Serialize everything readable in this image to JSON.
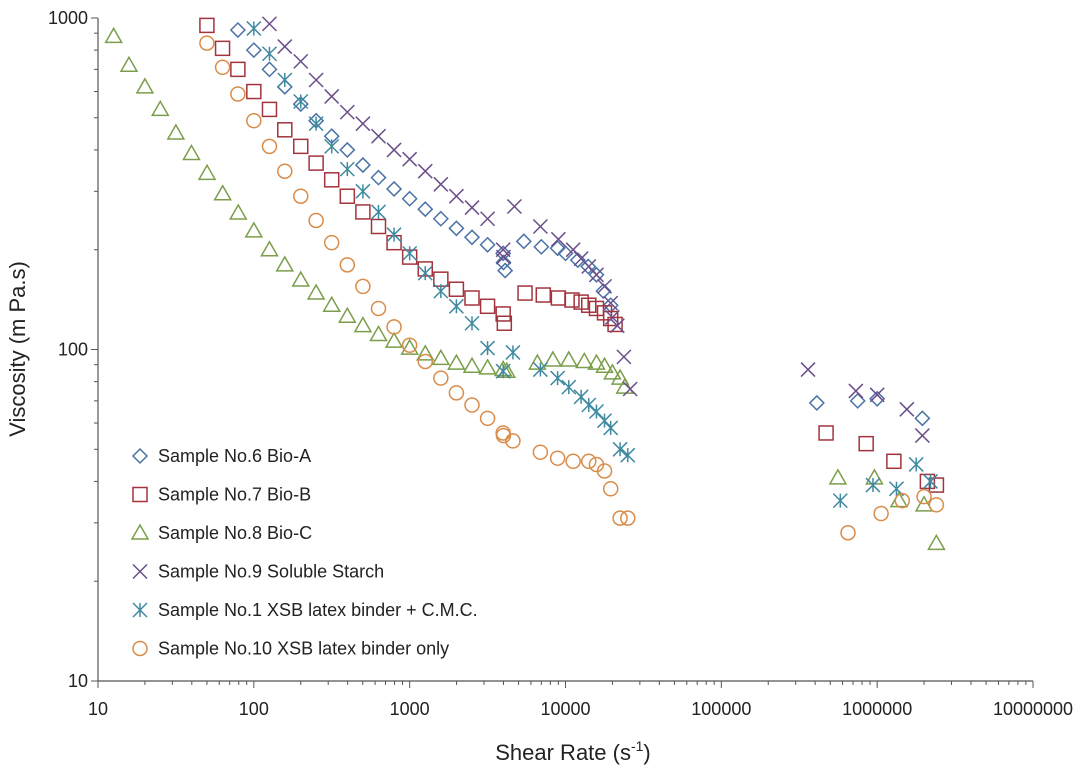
{
  "chart_data": {
    "type": "scatter",
    "xscale": "log",
    "yscale": "log",
    "xlim": [
      10,
      10000000
    ],
    "ylim": [
      10,
      1000
    ],
    "xlabel": "Shear Rate (s",
    "xlabel_sup": "-1",
    "xlabel_end": ")",
    "ylabel": "Viscosity (m Pa.s)",
    "xticks": [
      {
        "value": 10,
        "label": "10"
      },
      {
        "value": 100,
        "label": "100"
      },
      {
        "value": 1000,
        "label": "1000"
      },
      {
        "value": 10000,
        "label": "10000"
      },
      {
        "value": 100000,
        "label": "100000"
      },
      {
        "value": 1000000,
        "label": "1000000"
      },
      {
        "value": 10000000,
        "label": "10000000"
      }
    ],
    "yticks": [
      {
        "value": 10,
        "label": "10"
      },
      {
        "value": 100,
        "label": "100"
      },
      {
        "value": 1000,
        "label": "1000"
      }
    ],
    "legend_position": "bottom-left",
    "series": [
      {
        "name": "Sample No.6 Bio-A",
        "marker": "diamond",
        "color": "#4a72a6",
        "points": [
          [
            79,
            920
          ],
          [
            100,
            800
          ],
          [
            126,
            700
          ],
          [
            158,
            620
          ],
          [
            200,
            550
          ],
          [
            251,
            490
          ],
          [
            316,
            440
          ],
          [
            398,
            400
          ],
          [
            501,
            360
          ],
          [
            631,
            330
          ],
          [
            794,
            305
          ],
          [
            1000,
            285
          ],
          [
            1259,
            265
          ],
          [
            1585,
            248
          ],
          [
            1995,
            232
          ],
          [
            2512,
            218
          ],
          [
            3162,
            207
          ],
          [
            3981,
            195
          ],
          [
            4000,
            183
          ],
          [
            4100,
            173
          ],
          [
            5400,
            212
          ],
          [
            7000,
            204
          ],
          [
            8900,
            202
          ],
          [
            10000,
            195
          ],
          [
            12000,
            186
          ],
          [
            14000,
            178
          ],
          [
            15800,
            168
          ],
          [
            17500,
            150
          ],
          [
            19500,
            136
          ],
          [
            410000,
            69
          ],
          [
            750000,
            70
          ],
          [
            1000000,
            71
          ],
          [
            1950000,
            62
          ]
        ]
      },
      {
        "name": "Sample No.7 Bio-B",
        "marker": "square",
        "color": "#a3333d",
        "points": [
          [
            50,
            950
          ],
          [
            63,
            810
          ],
          [
            79,
            700
          ],
          [
            100,
            600
          ],
          [
            126,
            530
          ],
          [
            158,
            460
          ],
          [
            200,
            410
          ],
          [
            251,
            365
          ],
          [
            316,
            325
          ],
          [
            398,
            290
          ],
          [
            501,
            260
          ],
          [
            631,
            235
          ],
          [
            794,
            210
          ],
          [
            1000,
            190
          ],
          [
            1259,
            175
          ],
          [
            1585,
            163
          ],
          [
            1995,
            152
          ],
          [
            2512,
            143
          ],
          [
            3162,
            135
          ],
          [
            3981,
            128
          ],
          [
            4050,
            120
          ],
          [
            5500,
            148
          ],
          [
            7200,
            146
          ],
          [
            9000,
            143
          ],
          [
            11000,
            141
          ],
          [
            12600,
            139
          ],
          [
            14100,
            136
          ],
          [
            15800,
            133
          ],
          [
            17800,
            129
          ],
          [
            19500,
            124
          ],
          [
            20800,
            119
          ],
          [
            470000,
            56
          ],
          [
            850000,
            52
          ],
          [
            1280000,
            46
          ],
          [
            2100000,
            40
          ],
          [
            2400000,
            39
          ]
        ]
      },
      {
        "name": "Sample No.8 Bio-C",
        "marker": "triangle",
        "color": "#7a9e4a",
        "points": [
          [
            12.6,
            880
          ],
          [
            15.8,
            720
          ],
          [
            20,
            620
          ],
          [
            25.1,
            530
          ],
          [
            31.6,
            450
          ],
          [
            39.8,
            390
          ],
          [
            50.1,
            340
          ],
          [
            63.1,
            295
          ],
          [
            79.4,
            258
          ],
          [
            100,
            228
          ],
          [
            126,
            200
          ],
          [
            158,
            180
          ],
          [
            200,
            162
          ],
          [
            251,
            148
          ],
          [
            316,
            136
          ],
          [
            398,
            126
          ],
          [
            501,
            118
          ],
          [
            631,
            111
          ],
          [
            794,
            106
          ],
          [
            1000,
            101
          ],
          [
            1259,
            97
          ],
          [
            1585,
            94
          ],
          [
            1995,
            91
          ],
          [
            2512,
            89
          ],
          [
            3162,
            88
          ],
          [
            3981,
            87
          ],
          [
            4200,
            86
          ],
          [
            6600,
            91
          ],
          [
            8300,
            93
          ],
          [
            10500,
            93
          ],
          [
            13200,
            92
          ],
          [
            15800,
            91
          ],
          [
            17800,
            89
          ],
          [
            20000,
            85
          ],
          [
            22400,
            82
          ],
          [
            24000,
            77
          ],
          [
            560000,
            41
          ],
          [
            960000,
            41
          ],
          [
            1380000,
            35
          ],
          [
            2000000,
            34
          ],
          [
            2400000,
            26
          ]
        ]
      },
      {
        "name": "Sample No.9 Soluble Starch",
        "marker": "x",
        "color": "#6a4f8a",
        "points": [
          [
            126,
            960
          ],
          [
            158,
            820
          ],
          [
            200,
            740
          ],
          [
            251,
            650
          ],
          [
            316,
            580
          ],
          [
            398,
            520
          ],
          [
            501,
            480
          ],
          [
            631,
            440
          ],
          [
            794,
            400
          ],
          [
            1000,
            375
          ],
          [
            1259,
            345
          ],
          [
            1585,
            315
          ],
          [
            1995,
            290
          ],
          [
            2512,
            268
          ],
          [
            3162,
            248
          ],
          [
            3981,
            200
          ],
          [
            4000,
            190
          ],
          [
            4700,
            270
          ],
          [
            6900,
            235
          ],
          [
            9000,
            215
          ],
          [
            11200,
            200
          ],
          [
            12600,
            188
          ],
          [
            14100,
            178
          ],
          [
            15800,
            168
          ],
          [
            17800,
            155
          ],
          [
            19500,
            138
          ],
          [
            20000,
            125
          ],
          [
            21500,
            118
          ],
          [
            23700,
            95
          ],
          [
            26000,
            76
          ],
          [
            360000,
            87
          ],
          [
            730000,
            75
          ],
          [
            1000000,
            73
          ],
          [
            1550000,
            66
          ],
          [
            1950000,
            55
          ]
        ]
      },
      {
        "name": "Sample No.1 XSB latex binder + C.M.C.",
        "marker": "asterisk",
        "color": "#3f8aa0",
        "points": [
          [
            100,
            930
          ],
          [
            126,
            780
          ],
          [
            158,
            650
          ],
          [
            200,
            560
          ],
          [
            251,
            480
          ],
          [
            316,
            410
          ],
          [
            398,
            350
          ],
          [
            501,
            300
          ],
          [
            631,
            260
          ],
          [
            794,
            222
          ],
          [
            1000,
            195
          ],
          [
            1259,
            170
          ],
          [
            1585,
            150
          ],
          [
            1995,
            135
          ],
          [
            2512,
            120
          ],
          [
            3162,
            101
          ],
          [
            3981,
            86
          ],
          [
            4600,
            98
          ],
          [
            6900,
            87
          ],
          [
            8900,
            82
          ],
          [
            10500,
            77
          ],
          [
            12600,
            72
          ],
          [
            14100,
            68
          ],
          [
            15800,
            65
          ],
          [
            17800,
            61
          ],
          [
            19500,
            58
          ],
          [
            22400,
            50
          ],
          [
            25100,
            48
          ],
          [
            580000,
            35
          ],
          [
            940000,
            39
          ],
          [
            1330000,
            38
          ],
          [
            1780000,
            45
          ],
          [
            2200000,
            40
          ]
        ]
      },
      {
        "name": "Sample No.10 XSB latex binder only",
        "marker": "circle",
        "color": "#d98c4a",
        "points": [
          [
            50,
            840
          ],
          [
            63,
            710
          ],
          [
            79,
            590
          ],
          [
            100,
            490
          ],
          [
            126,
            410
          ],
          [
            158,
            345
          ],
          [
            200,
            290
          ],
          [
            251,
            245
          ],
          [
            316,
            210
          ],
          [
            398,
            180
          ],
          [
            501,
            155
          ],
          [
            631,
            133
          ],
          [
            794,
            117
          ],
          [
            1000,
            103
          ],
          [
            1259,
            92
          ],
          [
            1585,
            82
          ],
          [
            1995,
            74
          ],
          [
            2512,
            68
          ],
          [
            3162,
            62
          ],
          [
            3981,
            56
          ],
          [
            4000,
            55
          ],
          [
            4600,
            53
          ],
          [
            6900,
            49
          ],
          [
            8900,
            47
          ],
          [
            11200,
            46
          ],
          [
            14100,
            46
          ],
          [
            15800,
            45
          ],
          [
            17800,
            43
          ],
          [
            19500,
            38
          ],
          [
            22400,
            31
          ],
          [
            25100,
            31
          ],
          [
            650000,
            28
          ],
          [
            1060000,
            32
          ],
          [
            1450000,
            35
          ],
          [
            2000000,
            36
          ],
          [
            2400000,
            34
          ]
        ]
      }
    ]
  }
}
